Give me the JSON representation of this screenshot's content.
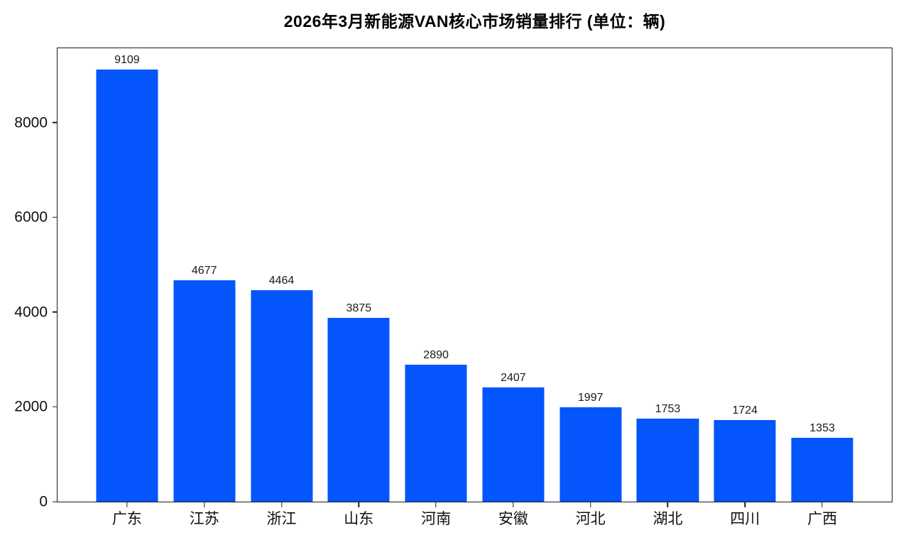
{
  "chart_data": {
    "type": "bar",
    "title": "2026年3月新能源VAN核心市场销量排行 (单位：辆)",
    "categories": [
      "广东",
      "江苏",
      "浙江",
      "山东",
      "河南",
      "安徽",
      "河北",
      "湖北",
      "四川",
      "广西"
    ],
    "values": [
      9109,
      4677,
      4464,
      3875,
      2890,
      2407,
      1997,
      1753,
      1724,
      1353
    ],
    "xlabel": "",
    "ylabel": "",
    "ylim": [
      0,
      9564
    ],
    "yticks": [
      0,
      2000,
      4000,
      6000,
      8000
    ],
    "bar_color": "#0455fb",
    "spine_color": "#1c1c1c",
    "grid": "off",
    "legend": "none",
    "value_labels_shown": true
  }
}
